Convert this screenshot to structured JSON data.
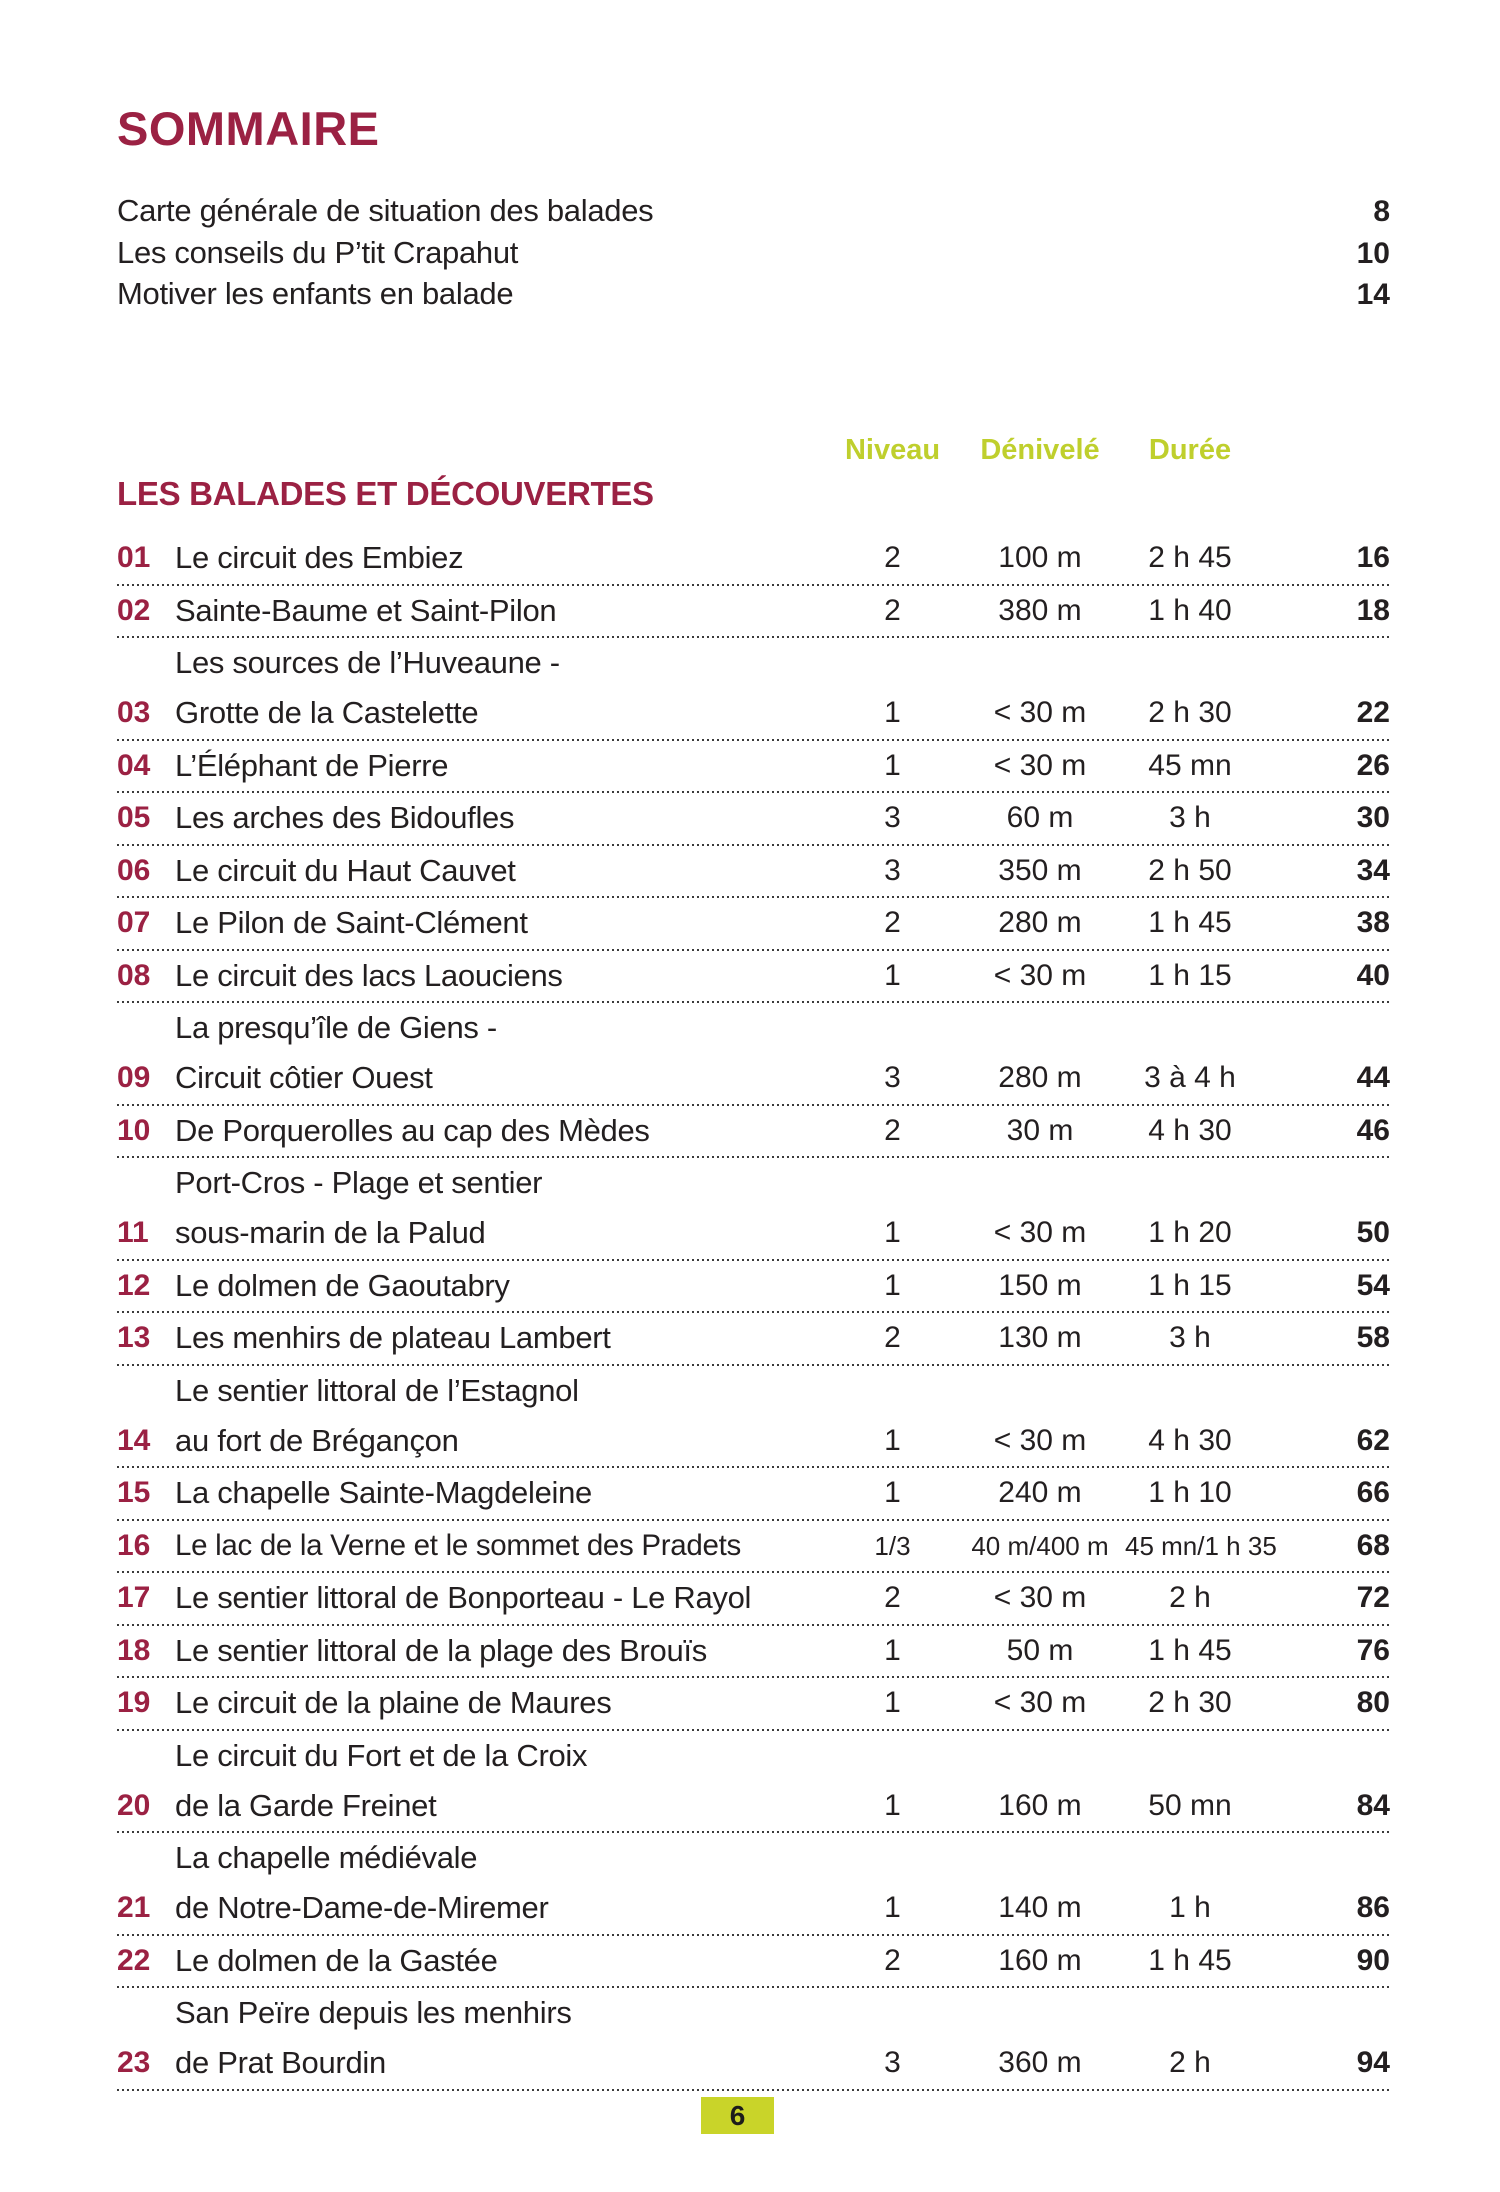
{
  "colors": {
    "maroon": "#9b2143",
    "chartreuse": "#bfcf2d",
    "badge_bg": "#c9d429",
    "text": "#231f20",
    "dotted_line": "#3a3a3a"
  },
  "page": {
    "title": "SOMMAIRE",
    "footer_page_number": "6"
  },
  "intro_links": [
    {
      "label": "Carte générale de situation des balades",
      "page": "8"
    },
    {
      "label": "Les conseils du P’tit Crapahut",
      "page": "10"
    },
    {
      "label": "Motiver les enfants en balade",
      "page": "14"
    }
  ],
  "table": {
    "section_title": "LES BALADES ET DÉCOUVERTES",
    "headers": {
      "niveau": "Niveau",
      "denivele": "Dénivelé",
      "duree": "Durée"
    },
    "rows": [
      {
        "num": "01",
        "lines": [
          "Le circuit des Embiez"
        ],
        "niveau": "2",
        "denivele": "100 m",
        "duree": "2 h 45",
        "page": "16"
      },
      {
        "num": "02",
        "lines": [
          "Sainte-Baume et Saint-Pilon"
        ],
        "niveau": "2",
        "denivele": "380 m",
        "duree": "1 h 40",
        "page": "18"
      },
      {
        "num": "03",
        "lines": [
          "Les sources de l’Huveaune -",
          "Grotte de la Castelette"
        ],
        "niveau": "1",
        "denivele": "< 30 m",
        "duree": "2 h 30",
        "page": "22"
      },
      {
        "num": "04",
        "lines": [
          "L’Éléphant de Pierre"
        ],
        "niveau": "1",
        "denivele": "< 30 m",
        "duree": "45 mn",
        "page": "26"
      },
      {
        "num": "05",
        "lines": [
          "Les arches des Bidoufles"
        ],
        "niveau": "3",
        "denivele": "60 m",
        "duree": "3 h",
        "page": "30"
      },
      {
        "num": "06",
        "lines": [
          "Le circuit du Haut Cauvet"
        ],
        "niveau": "3",
        "denivele": "350 m",
        "duree": "2 h 50",
        "page": "34"
      },
      {
        "num": "07",
        "lines": [
          "Le Pilon de Saint-Clément"
        ],
        "niveau": "2",
        "denivele": "280 m",
        "duree": "1 h 45",
        "page": "38"
      },
      {
        "num": "08",
        "lines": [
          "Le circuit des lacs Laouciens"
        ],
        "niveau": "1",
        "denivele": "< 30 m",
        "duree": "1 h 15",
        "page": "40"
      },
      {
        "num": "09",
        "lines": [
          "La presqu’île de Giens -",
          "Circuit côtier Ouest"
        ],
        "niveau": "3",
        "denivele": "280 m",
        "duree": "3 à 4 h",
        "page": "44"
      },
      {
        "num": "10",
        "lines": [
          "De Porquerolles au cap des Mèdes"
        ],
        "niveau": "2",
        "denivele": "30 m",
        "duree": "4 h 30",
        "page": "46"
      },
      {
        "num": "11",
        "lines": [
          "Port-Cros - Plage et sentier",
          "sous-marin de la Palud"
        ],
        "niveau": "1",
        "denivele": "< 30 m",
        "duree": "1 h 20",
        "page": "50"
      },
      {
        "num": "12",
        "lines": [
          "Le dolmen de Gaoutabry"
        ],
        "niveau": "1",
        "denivele": "150 m",
        "duree": "1 h 15",
        "page": "54"
      },
      {
        "num": "13",
        "lines": [
          "Les menhirs de plateau Lambert"
        ],
        "niveau": "2",
        "denivele": "130 m",
        "duree": "3 h",
        "page": "58"
      },
      {
        "num": "14",
        "lines": [
          "Le sentier littoral de l’Estagnol",
          "au fort de Brégançon"
        ],
        "niveau": "1",
        "denivele": "< 30 m",
        "duree": "4 h 30",
        "page": "62"
      },
      {
        "num": "15",
        "lines": [
          "La chapelle Sainte-Magdeleine"
        ],
        "niveau": "1",
        "denivele": "240 m",
        "duree": "1 h 10",
        "page": "66"
      },
      {
        "num": "16",
        "lines": [
          "Le lac de la Verne et le sommet des Pradets"
        ],
        "niveau": "1/3",
        "denivele": "40 m/400 m",
        "duree": "45 mn/1 h 35",
        "page": "68",
        "compact": true
      },
      {
        "num": "17",
        "lines": [
          "Le sentier littoral de Bonporteau - Le Rayol"
        ],
        "niveau": "2",
        "denivele": "< 30 m",
        "duree": "2 h",
        "page": "72"
      },
      {
        "num": "18",
        "lines": [
          "Le sentier littoral de la plage des Brouïs"
        ],
        "niveau": "1",
        "denivele": "50 m",
        "duree": "1 h 45",
        "page": "76"
      },
      {
        "num": "19",
        "lines": [
          "Le circuit de la plaine de Maures"
        ],
        "niveau": "1",
        "denivele": "< 30 m",
        "duree": "2 h 30",
        "page": "80"
      },
      {
        "num": "20",
        "lines": [
          "Le circuit du Fort et de la Croix",
          "de la Garde Freinet"
        ],
        "niveau": "1",
        "denivele": "160 m",
        "duree": "50 mn",
        "page": "84"
      },
      {
        "num": "21",
        "lines": [
          "La chapelle médiévale",
          "de Notre-Dame-de-Miremer"
        ],
        "niveau": "1",
        "denivele": "140 m",
        "duree": "1 h",
        "page": "86"
      },
      {
        "num": "22",
        "lines": [
          "Le dolmen de la Gastée"
        ],
        "niveau": "2",
        "denivele": "160 m",
        "duree": "1 h 45",
        "page": "90"
      },
      {
        "num": "23",
        "lines": [
          "San Peïre depuis les menhirs",
          "de Prat Bourdin"
        ],
        "niveau": "3",
        "denivele": "360 m",
        "duree": "2 h",
        "page": "94"
      }
    ]
  }
}
